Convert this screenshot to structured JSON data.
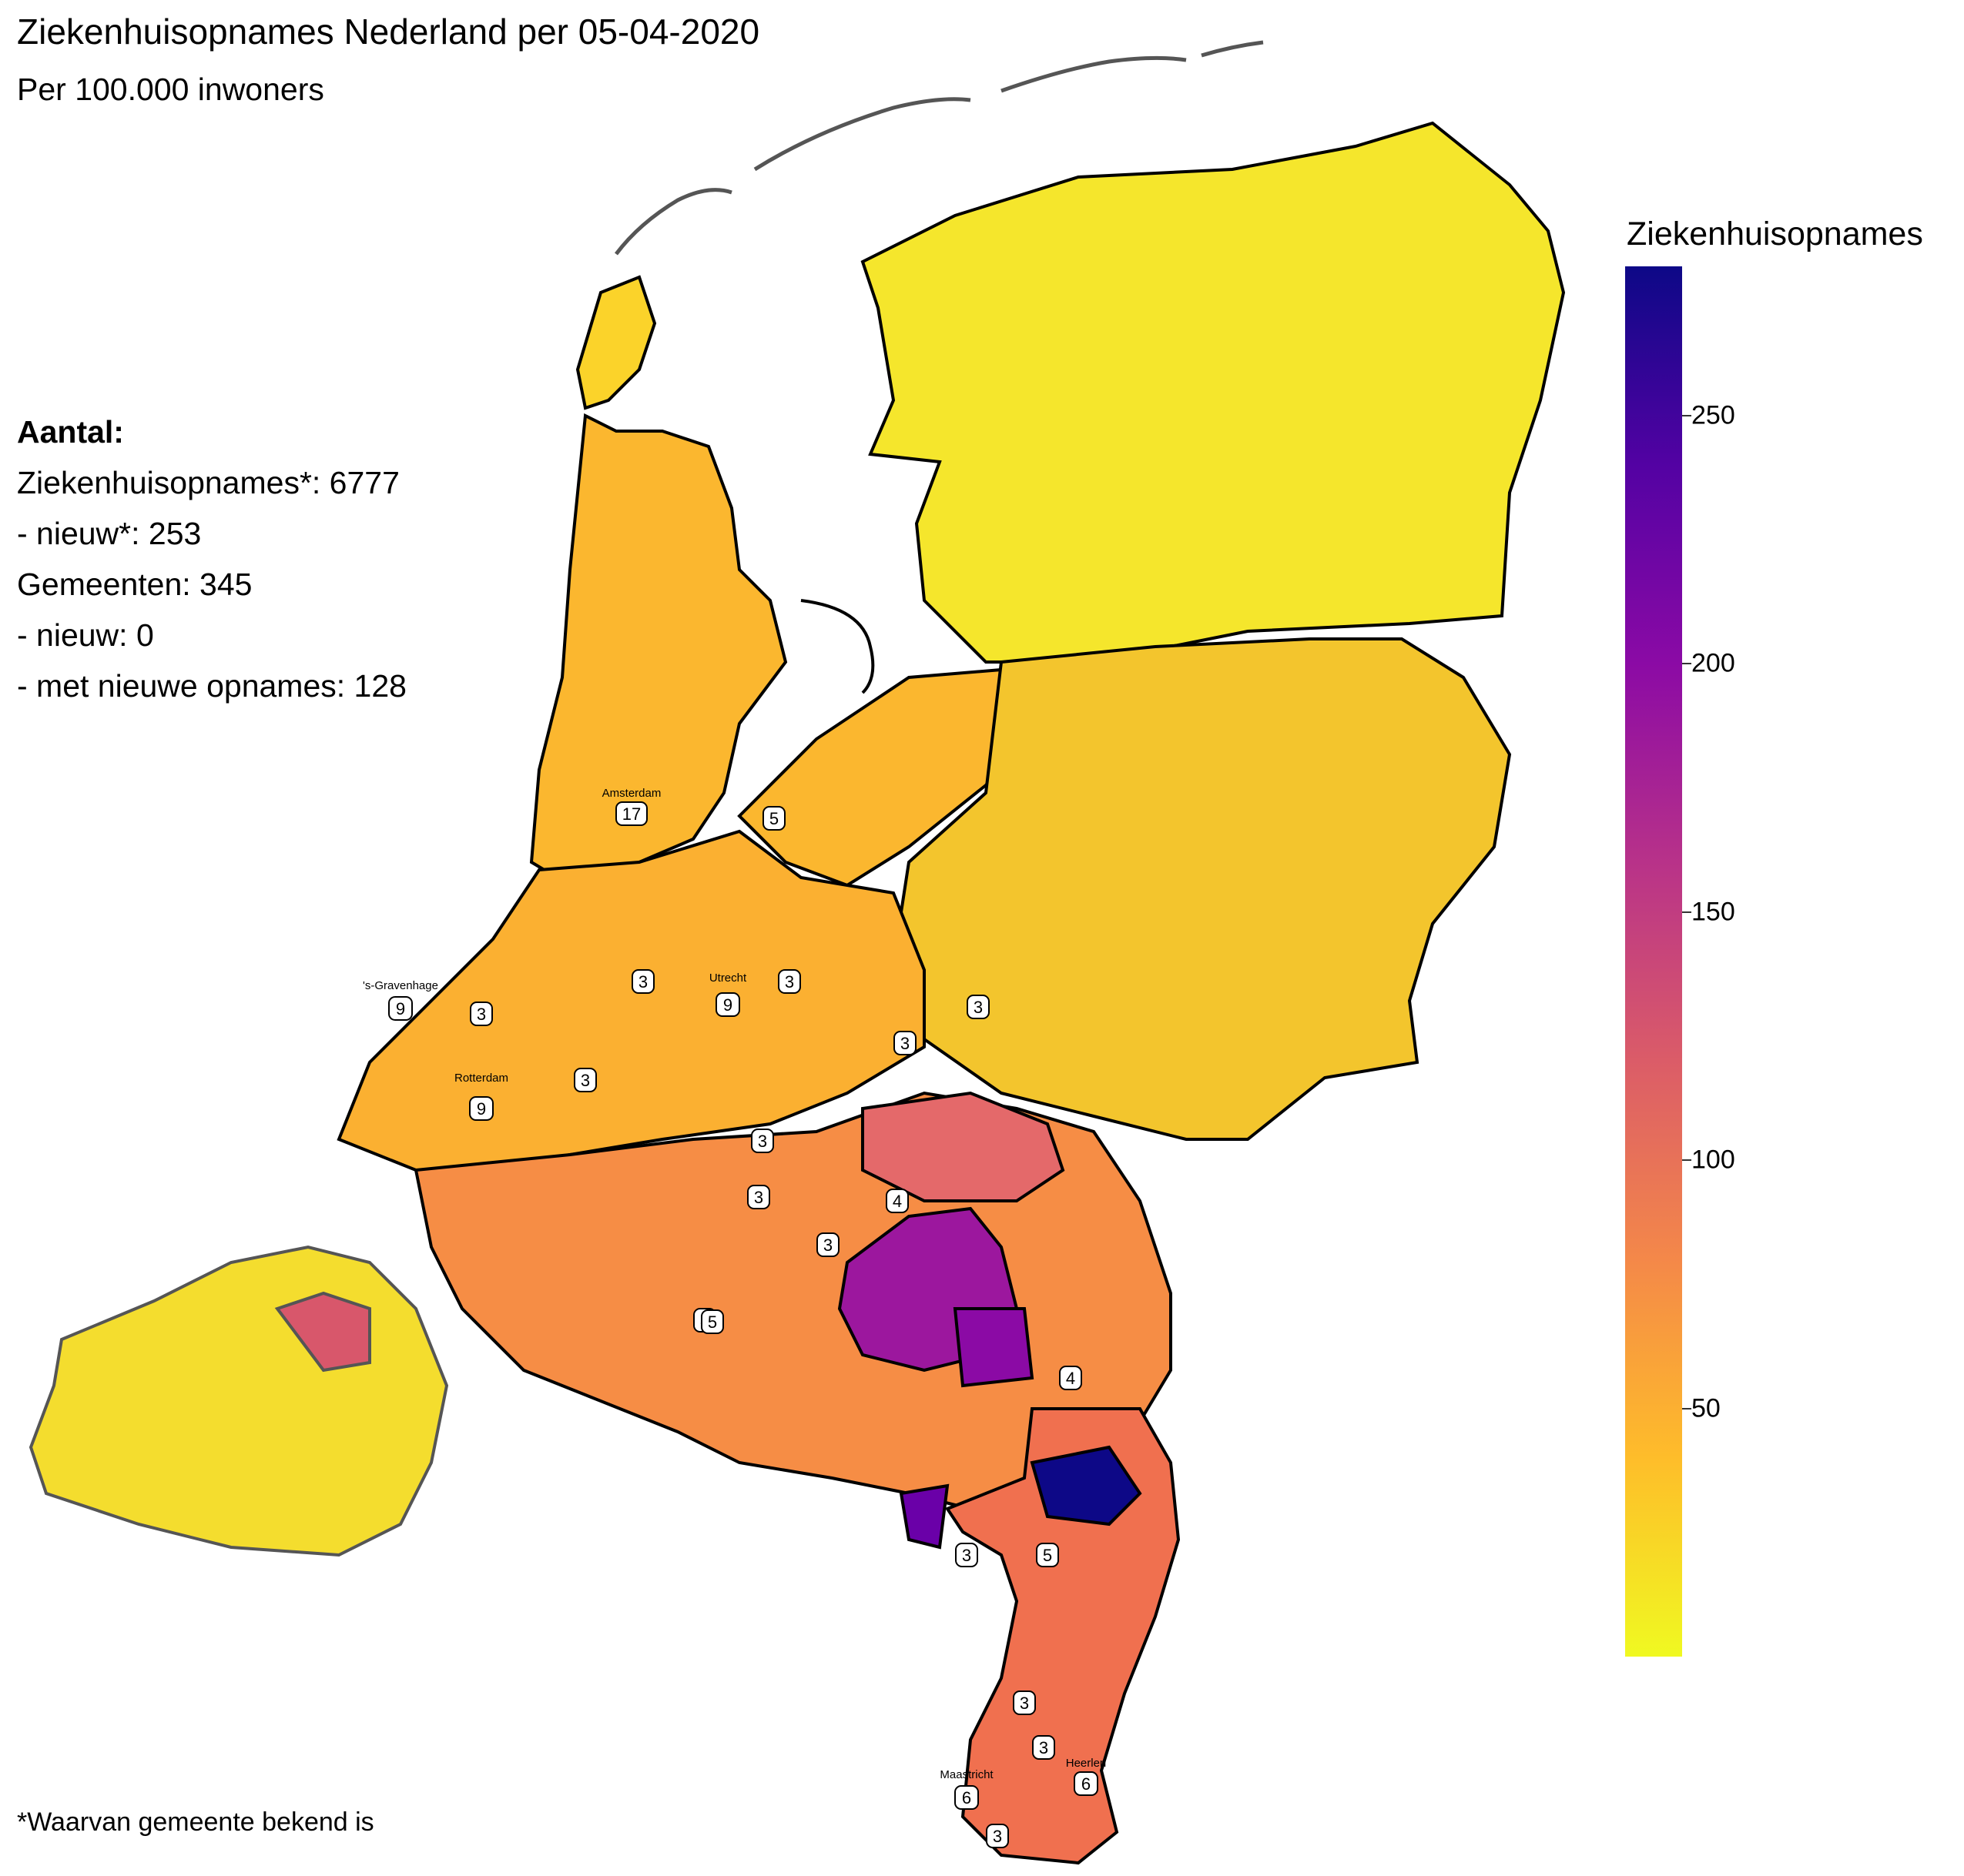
{
  "title": "Ziekenhuisopnames Nederland per 05-04-2020",
  "subtitle": "Per 100.000 inwoners",
  "stats": {
    "heading": "Aantal:",
    "line1": "Ziekenhuisopnames*: 6777",
    "line2": "- nieuw*: 253",
    "line3": "Gemeenten: 345",
    "line4": "- nieuw: 0",
    "line5": "- met nieuwe opnames: 128"
  },
  "footnote": "*Waarvan gemeente bekend is",
  "legend": {
    "title": "Ziekenhuisopnames",
    "ticks": [
      "250",
      "200",
      "150",
      "100",
      "50"
    ],
    "tick_values": [
      250,
      200,
      150,
      100,
      50
    ],
    "range": [
      0,
      280
    ],
    "colors": [
      "#0d0887",
      "#5302a3",
      "#8b0aa5",
      "#b83289",
      "#db5c68",
      "#f48849",
      "#febd2a",
      "#f0f921"
    ]
  },
  "cities": [
    {
      "name": "Amsterdam",
      "badge": "17"
    },
    {
      "name": "'s-Gravenhage",
      "badge": "9"
    },
    {
      "name": "Rotterdam",
      "badge": "9"
    },
    {
      "name": "Utrecht",
      "badge": "9"
    },
    {
      "name": "Maastricht",
      "badge": "6"
    },
    {
      "name": "Heerlen",
      "badge": "6"
    }
  ],
  "badges": [
    "5",
    "3",
    "3",
    "3",
    "3",
    "3",
    "3",
    "3",
    "3",
    "3",
    "4",
    "3",
    "5",
    "4",
    "3",
    "5",
    "3",
    "3",
    "3"
  ]
}
